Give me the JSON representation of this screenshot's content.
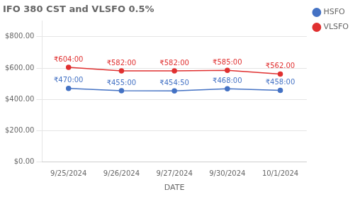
{
  "chart_data": {
    "type": "line",
    "title": "IFO 380 CST and VLSFO 0.5%",
    "xlabel": "DATE",
    "categories": [
      "9/25/2024",
      "9/26/2024",
      "9/27/2024",
      "9/30/2024",
      "10/1/2024"
    ],
    "series": [
      {
        "name": "VLSFO",
        "color": "#e03030",
        "marker": "circle",
        "values": [
          604.0,
          582.0,
          582.0,
          585.0,
          562.0
        ],
        "value_labels": [
          "₹604:00",
          "₹582:00",
          "₹582:00",
          "₹585:00",
          "₹562.00"
        ]
      },
      {
        "name": "HSFO",
        "color": "#4472c4",
        "marker": "circle",
        "values": [
          470.0,
          455.0,
          454.5,
          468.0,
          458.0
        ],
        "value_labels": [
          "₹470:00",
          "₹455:00",
          "₹454:50",
          "₹468:00",
          "₹458:00"
        ]
      }
    ],
    "ylim": [
      0,
      900
    ],
    "yticks": [
      {
        "value": 0,
        "label": "$0.00"
      },
      {
        "value": 200,
        "label": "$200.00"
      },
      {
        "value": 400,
        "label": "$400.00"
      },
      {
        "value": 600,
        "label": "$600.00"
      },
      {
        "value": 800,
        "label": "$800.00"
      }
    ],
    "grid": "y",
    "legend": "right",
    "data_labels": true
  }
}
